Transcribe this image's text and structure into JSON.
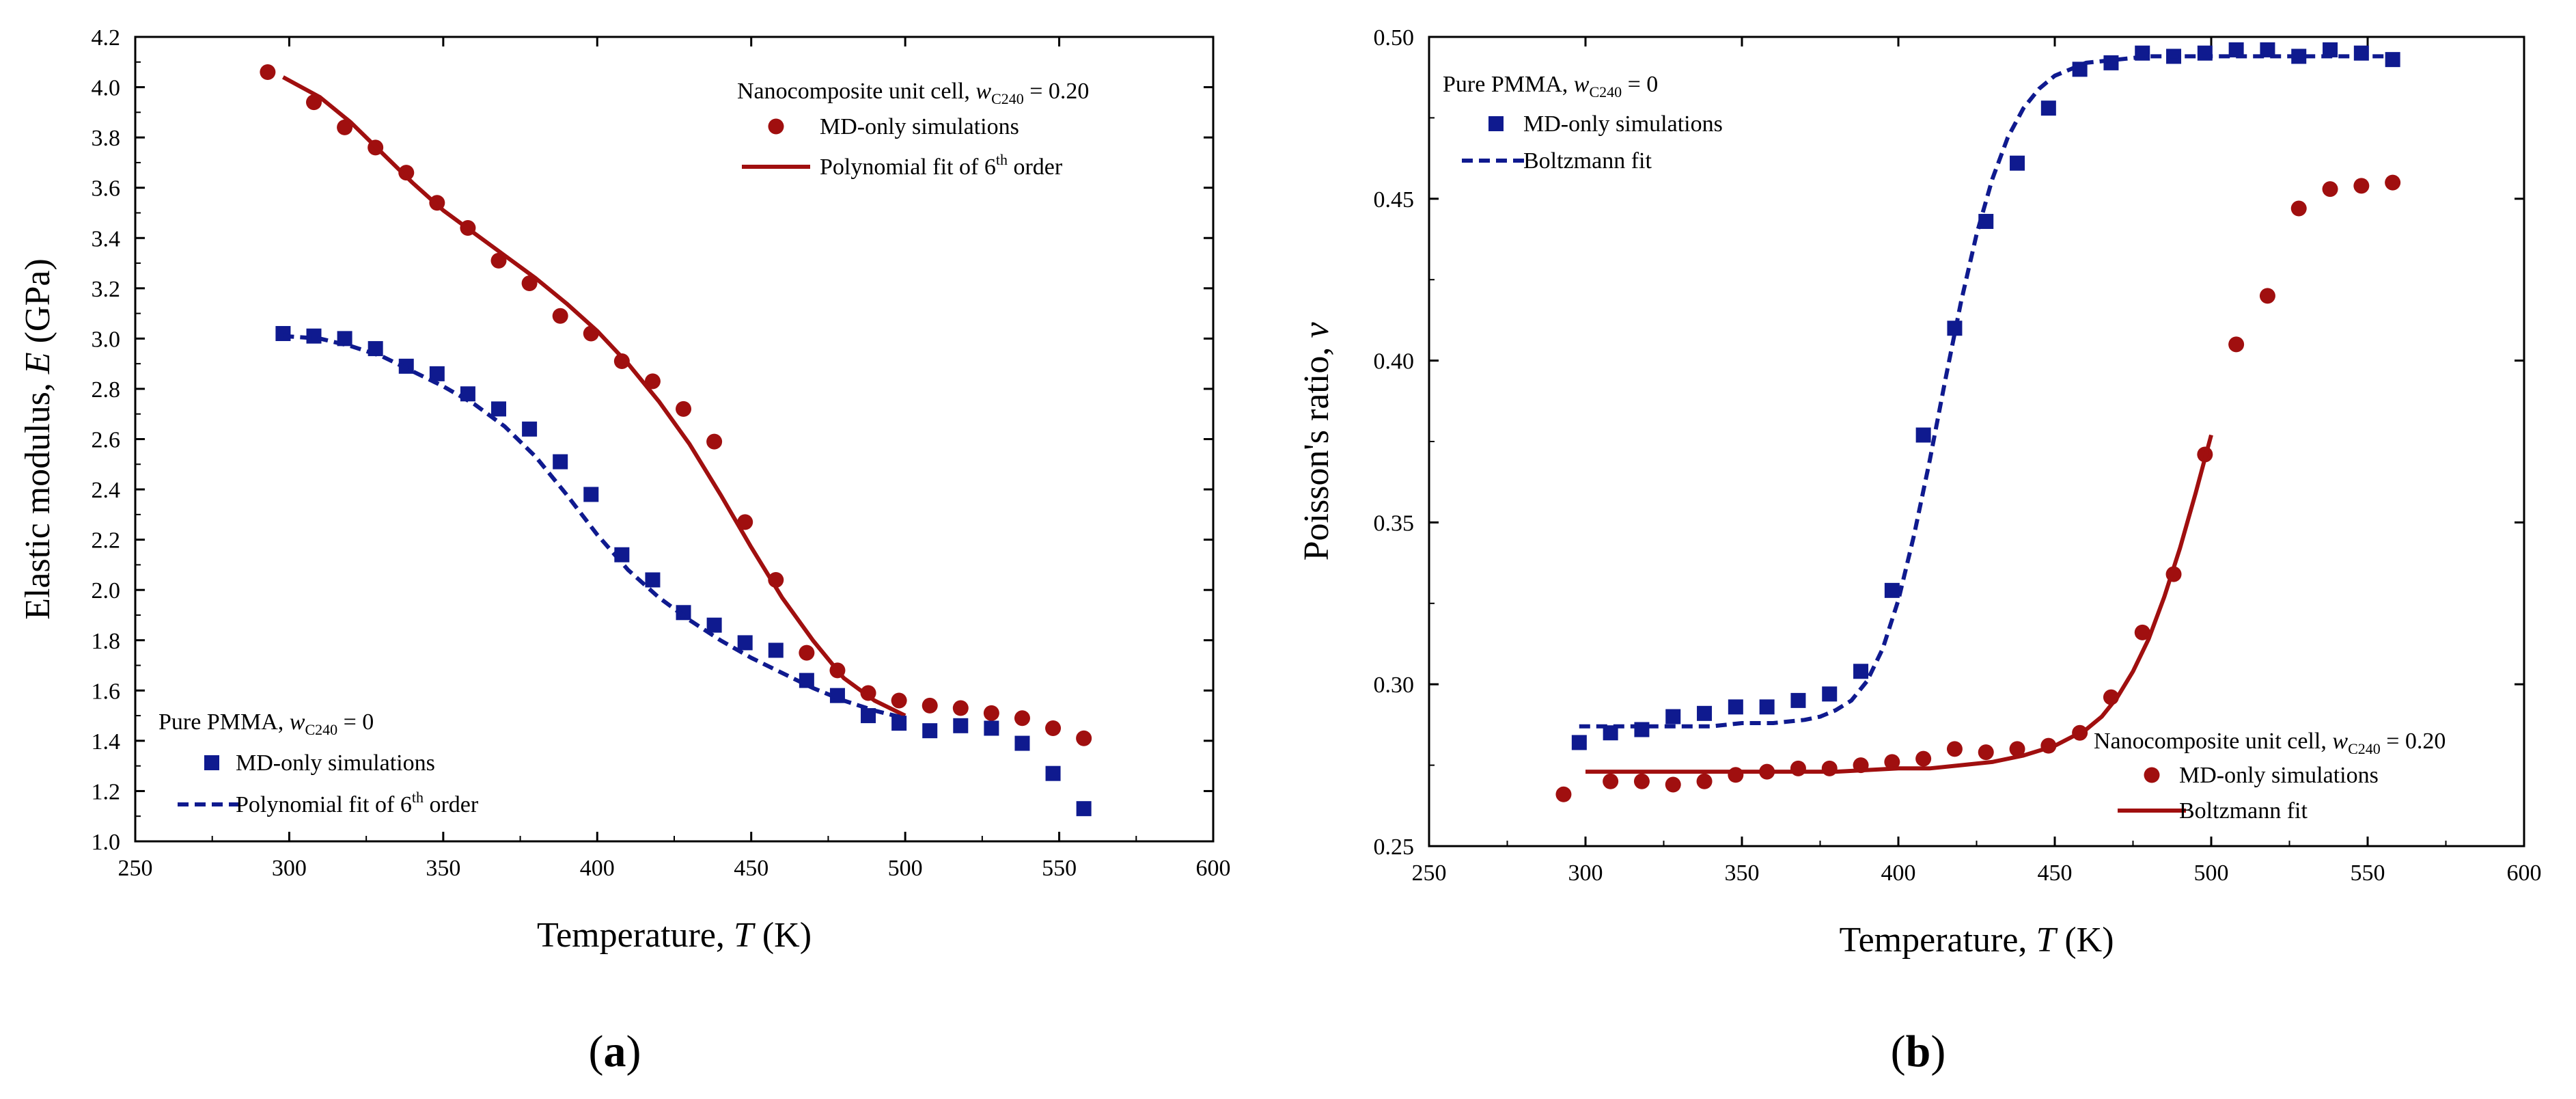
{
  "chart_data": [
    {
      "type": "scatter",
      "panel_label": "a",
      "xlabel": "Temperature, T (K)",
      "xlabel_prefix": "Temperature, ",
      "xlabel_var": "T",
      "xlabel_unit": " (K)",
      "ylabel": "Elastic modulus, E (GPa)",
      "ylabel_prefix": "Elastic modulus, ",
      "ylabel_var": "E",
      "ylabel_unit": " (GPa)",
      "xlim": [
        250,
        600
      ],
      "ylim": [
        1.0,
        4.2
      ],
      "xticks": [
        "250",
        "300",
        "350",
        "400",
        "450",
        "500",
        "550",
        "600"
      ],
      "yticks": [
        "1.0",
        "1.2",
        "1.4",
        "1.6",
        "1.8",
        "2.0",
        "2.2",
        "2.4",
        "2.6",
        "2.8",
        "3.0",
        "3.2",
        "3.4",
        "3.6",
        "3.8",
        "4.0",
        "4.2"
      ],
      "legends": [
        {
          "position": "top-right",
          "title_prefix": "Nanocomposite unit cell, ",
          "title_var": "w",
          "title_sub": "C240",
          "title_suffix": " = 0.20",
          "entries": [
            {
              "kind": "marker",
              "label": "MD-only simulations"
            },
            {
              "kind": "line",
              "label_prefix": "Polynomial fit of 6",
              "label_sup": "th",
              "label_suffix": " order"
            }
          ]
        },
        {
          "position": "bottom-left",
          "title_prefix": "Pure PMMA, ",
          "title_var": "w",
          "title_sub": "C240",
          "title_suffix": " = 0",
          "entries": [
            {
              "kind": "marker",
              "label": "MD-only simulations"
            },
            {
              "kind": "line",
              "label_prefix": "Polynomial fit of 6",
              "label_sup": "th",
              "label_suffix": " order"
            }
          ]
        }
      ],
      "series": [
        {
          "name": "Nanocomposite unit cell, wC240 = 0.20 — MD-only simulations",
          "marker": "circle",
          "color": "#a00f0f",
          "x": [
            293,
            308,
            318,
            328,
            338,
            348,
            358,
            368,
            378,
            388,
            398,
            408,
            418,
            428,
            438,
            448,
            458,
            468,
            478,
            488,
            498,
            508,
            518,
            528,
            538,
            548,
            558
          ],
          "y": [
            4.06,
            3.94,
            3.84,
            3.76,
            3.66,
            3.54,
            3.44,
            3.31,
            3.22,
            3.09,
            3.02,
            2.91,
            2.83,
            2.72,
            2.59,
            2.27,
            2.04,
            1.75,
            1.68,
            1.59,
            1.56,
            1.54,
            1.53,
            1.51,
            1.49,
            1.45,
            1.41
          ]
        },
        {
          "name": "Nanocomposite unit cell, wC240 = 0.20 — Polynomial fit of 6th order",
          "line": "solid",
          "color": "#a00f0f",
          "x": [
            298,
            310,
            320,
            330,
            340,
            350,
            360,
            370,
            380,
            390,
            400,
            410,
            420,
            430,
            440,
            450,
            460,
            470,
            480,
            490,
            500
          ],
          "y": [
            4.04,
            3.96,
            3.86,
            3.74,
            3.62,
            3.51,
            3.42,
            3.33,
            3.24,
            3.14,
            3.03,
            2.9,
            2.75,
            2.58,
            2.38,
            2.17,
            1.97,
            1.8,
            1.65,
            1.56,
            1.5
          ]
        },
        {
          "name": "Pure PMMA, wC240 = 0 — MD-only simulations",
          "marker": "square",
          "color": "#0f1a8f",
          "x": [
            298,
            308,
            318,
            328,
            338,
            348,
            358,
            368,
            378,
            388,
            398,
            408,
            418,
            428,
            438,
            448,
            458,
            468,
            478,
            488,
            498,
            508,
            518,
            528,
            538,
            548,
            558
          ],
          "y": [
            3.02,
            3.01,
            3.0,
            2.96,
            2.89,
            2.86,
            2.78,
            2.72,
            2.64,
            2.51,
            2.38,
            2.14,
            2.04,
            1.91,
            1.86,
            1.79,
            1.76,
            1.64,
            1.58,
            1.5,
            1.47,
            1.44,
            1.46,
            1.45,
            1.39,
            1.27,
            1.13
          ]
        },
        {
          "name": "Pure PMMA, wC240 = 0 — Polynomial fit of 6th order",
          "line": "dashed",
          "color": "#0f1a8f",
          "x": [
            298,
            310,
            320,
            330,
            340,
            350,
            360,
            370,
            380,
            390,
            400,
            410,
            420,
            430,
            440,
            450,
            460,
            470,
            480,
            490,
            500
          ],
          "y": [
            3.01,
            3.0,
            2.97,
            2.93,
            2.87,
            2.81,
            2.74,
            2.65,
            2.53,
            2.38,
            2.22,
            2.08,
            1.97,
            1.88,
            1.8,
            1.73,
            1.67,
            1.61,
            1.56,
            1.52,
            1.49
          ]
        }
      ]
    },
    {
      "type": "scatter",
      "panel_label": "b",
      "xlabel": "Temperature, T (K)",
      "xlabel_prefix": "Temperature, ",
      "xlabel_var": "T",
      "xlabel_unit": " (K)",
      "ylabel": "Poisson's ratio, ν",
      "ylabel_prefix": "Poisson's ratio, ",
      "ylabel_var": "ν",
      "ylabel_unit": "",
      "xlim": [
        250,
        600
      ],
      "ylim": [
        0.25,
        0.5
      ],
      "xticks": [
        "250",
        "300",
        "350",
        "400",
        "450",
        "500",
        "550",
        "600"
      ],
      "yticks": [
        "0.25",
        "0.30",
        "0.35",
        "0.40",
        "0.45",
        "0.50"
      ],
      "legends": [
        {
          "position": "top-left",
          "title_prefix": "Pure PMMA, ",
          "title_var": "w",
          "title_sub": "C240",
          "title_suffix": " = 0",
          "entries": [
            {
              "kind": "marker",
              "label": "MD-only simulations"
            },
            {
              "kind": "line",
              "label": "Boltzmann fit"
            }
          ]
        },
        {
          "position": "bottom-right",
          "title_prefix": "Nanocomposite unit cell, ",
          "title_var": "w",
          "title_sub": "C240",
          "title_suffix": " = 0.20",
          "entries": [
            {
              "kind": "marker",
              "label": "MD-only simulations"
            },
            {
              "kind": "line",
              "label": "Boltzmann fit"
            }
          ]
        }
      ],
      "series": [
        {
          "name": "Pure PMMA, wC240 = 0 — MD-only simulations",
          "marker": "square",
          "color": "#0f1a8f",
          "x": [
            298,
            308,
            318,
            328,
            338,
            348,
            358,
            368,
            378,
            388,
            398,
            408,
            418,
            428,
            438,
            448,
            458,
            468,
            478,
            488,
            498,
            508,
            518,
            528,
            538,
            548,
            558
          ],
          "y": [
            0.282,
            0.285,
            0.286,
            0.29,
            0.291,
            0.293,
            0.293,
            0.295,
            0.297,
            0.304,
            0.329,
            0.377,
            0.41,
            0.443,
            0.461,
            0.478,
            0.49,
            0.492,
            0.495,
            0.494,
            0.495,
            0.496,
            0.496,
            0.494,
            0.496,
            0.495,
            0.493
          ]
        },
        {
          "name": "Pure PMMA, wC240 = 0 — Boltzmann fit",
          "line": "dashed",
          "color": "#0f1a8f",
          "x": [
            298,
            310,
            320,
            330,
            340,
            350,
            360,
            370,
            375,
            380,
            385,
            390,
            395,
            400,
            405,
            410,
            415,
            420,
            425,
            430,
            435,
            440,
            445,
            450,
            460,
            470,
            480,
            490,
            500,
            510,
            520,
            530,
            540,
            550,
            558
          ],
          "y": [
            0.287,
            0.287,
            0.287,
            0.287,
            0.287,
            0.288,
            0.288,
            0.289,
            0.29,
            0.292,
            0.295,
            0.301,
            0.311,
            0.326,
            0.346,
            0.369,
            0.394,
            0.418,
            0.439,
            0.456,
            0.469,
            0.478,
            0.484,
            0.488,
            0.492,
            0.493,
            0.494,
            0.494,
            0.494,
            0.494,
            0.494,
            0.494,
            0.494,
            0.494,
            0.494
          ]
        },
        {
          "name": "Nanocomposite unit cell, wC240 = 0.20 — MD-only simulations",
          "marker": "circle",
          "color": "#a00f0f",
          "x": [
            293,
            308,
            318,
            328,
            338,
            348,
            358,
            368,
            378,
            388,
            398,
            408,
            418,
            428,
            438,
            448,
            458,
            468,
            478,
            488,
            498,
            508,
            518,
            528,
            538,
            548,
            558
          ],
          "y": [
            0.266,
            0.27,
            0.27,
            0.269,
            0.27,
            0.272,
            0.273,
            0.274,
            0.274,
            0.275,
            0.276,
            0.277,
            0.28,
            0.279,
            0.28,
            0.281,
            0.285,
            0.296,
            0.316,
            0.334,
            0.371,
            0.405,
            0.42,
            0.447,
            0.453,
            0.454,
            0.455
          ]
        },
        {
          "name": "Nanocomposite unit cell, wC240 = 0.20 — Boltzmann fit",
          "line": "solid",
          "color": "#a00f0f",
          "x": [
            300,
            320,
            340,
            360,
            380,
            400,
            410,
            420,
            430,
            440,
            450,
            460,
            465,
            470,
            475,
            480,
            485,
            490,
            495,
            500
          ],
          "y": [
            0.273,
            0.273,
            0.273,
            0.273,
            0.273,
            0.274,
            0.274,
            0.275,
            0.276,
            0.278,
            0.281,
            0.286,
            0.29,
            0.296,
            0.304,
            0.314,
            0.327,
            0.342,
            0.359,
            0.377
          ]
        }
      ]
    }
  ]
}
